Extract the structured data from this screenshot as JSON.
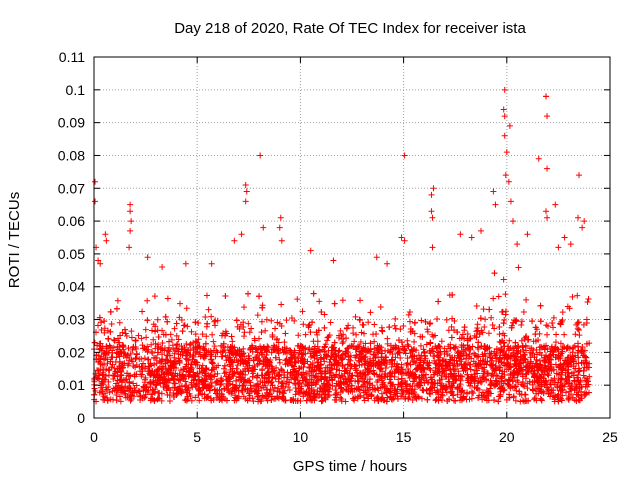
{
  "chart_data": {
    "type": "scatter",
    "title": "Day 218 of 2020, Rate Of TEC Index for receiver ista",
    "xlabel": "GPS time / hours",
    "ylabel": "ROTI / TECUs",
    "xlim": [
      0,
      25
    ],
    "ylim": [
      0,
      0.11
    ],
    "xticks": [
      0,
      5,
      10,
      15,
      20,
      25
    ],
    "xtick_labels": [
      "0",
      "5",
      "10",
      "15",
      "20",
      "25"
    ],
    "yticks": [
      0,
      0.01,
      0.02,
      0.03,
      0.04,
      0.05,
      0.06,
      0.07,
      0.08,
      0.09,
      0.1,
      0.11
    ],
    "ytick_labels": [
      "0",
      "0.01",
      "0.02",
      "0.03",
      "0.04",
      "0.05",
      "0.06",
      "0.07",
      "0.08",
      "0.09",
      "0.1",
      "0.11"
    ],
    "grid": true,
    "marker": "+",
    "color": "#ff0000",
    "series": [
      {
        "name": "ROTI",
        "note": "dense cloud of several thousand points, mostly 0.005-0.03 TECU; notable outliers listed",
        "points": [
          [
            0.05,
            0.072
          ],
          [
            0.05,
            0.066
          ],
          [
            0.1,
            0.052
          ],
          [
            0.2,
            0.048
          ],
          [
            0.3,
            0.047
          ],
          [
            0.55,
            0.056
          ],
          [
            0.6,
            0.054
          ],
          [
            1.75,
            0.065
          ],
          [
            1.75,
            0.063
          ],
          [
            1.8,
            0.06
          ],
          [
            1.75,
            0.057
          ],
          [
            1.7,
            0.052
          ],
          [
            2.6,
            0.049
          ],
          [
            3.3,
            0.046
          ],
          [
            4.45,
            0.047
          ],
          [
            5.7,
            0.047
          ],
          [
            6.8,
            0.054
          ],
          [
            7.15,
            0.056
          ],
          [
            7.35,
            0.071
          ],
          [
            7.4,
            0.069
          ],
          [
            7.35,
            0.066
          ],
          [
            8.05,
            0.08
          ],
          [
            8.2,
            0.058
          ],
          [
            9.05,
            0.061
          ],
          [
            9.0,
            0.058
          ],
          [
            9.1,
            0.054
          ],
          [
            10.5,
            0.051
          ],
          [
            11.6,
            0.048
          ],
          [
            13.7,
            0.049
          ],
          [
            14.2,
            0.047
          ],
          [
            14.9,
            0.055
          ],
          [
            15.05,
            0.08
          ],
          [
            15.05,
            0.054
          ],
          [
            16.45,
            0.07
          ],
          [
            16.35,
            0.068
          ],
          [
            16.35,
            0.063
          ],
          [
            16.4,
            0.061
          ],
          [
            16.4,
            0.052
          ],
          [
            17.75,
            0.056
          ],
          [
            18.3,
            0.055
          ],
          [
            18.75,
            0.057
          ],
          [
            19.35,
            0.069
          ],
          [
            19.45,
            0.065
          ],
          [
            19.9,
            0.1
          ],
          [
            19.85,
            0.094
          ],
          [
            19.9,
            0.092
          ],
          [
            19.9,
            0.086
          ],
          [
            20.15,
            0.089
          ],
          [
            20.0,
            0.081
          ],
          [
            19.95,
            0.074
          ],
          [
            20.1,
            0.072
          ],
          [
            20.2,
            0.066
          ],
          [
            20.3,
            0.06
          ],
          [
            20.5,
            0.053
          ],
          [
            21.0,
            0.056
          ],
          [
            21.55,
            0.079
          ],
          [
            21.9,
            0.098
          ],
          [
            21.9,
            0.098
          ],
          [
            21.95,
            0.092
          ],
          [
            21.95,
            0.076
          ],
          [
            21.9,
            0.063
          ],
          [
            21.95,
            0.061
          ],
          [
            22.35,
            0.065
          ],
          [
            22.5,
            0.052
          ],
          [
            22.8,
            0.055
          ],
          [
            23.1,
            0.053
          ],
          [
            23.5,
            0.074
          ],
          [
            23.45,
            0.061
          ],
          [
            23.75,
            0.06
          ],
          [
            23.65,
            0.058
          ]
        ]
      }
    ]
  }
}
